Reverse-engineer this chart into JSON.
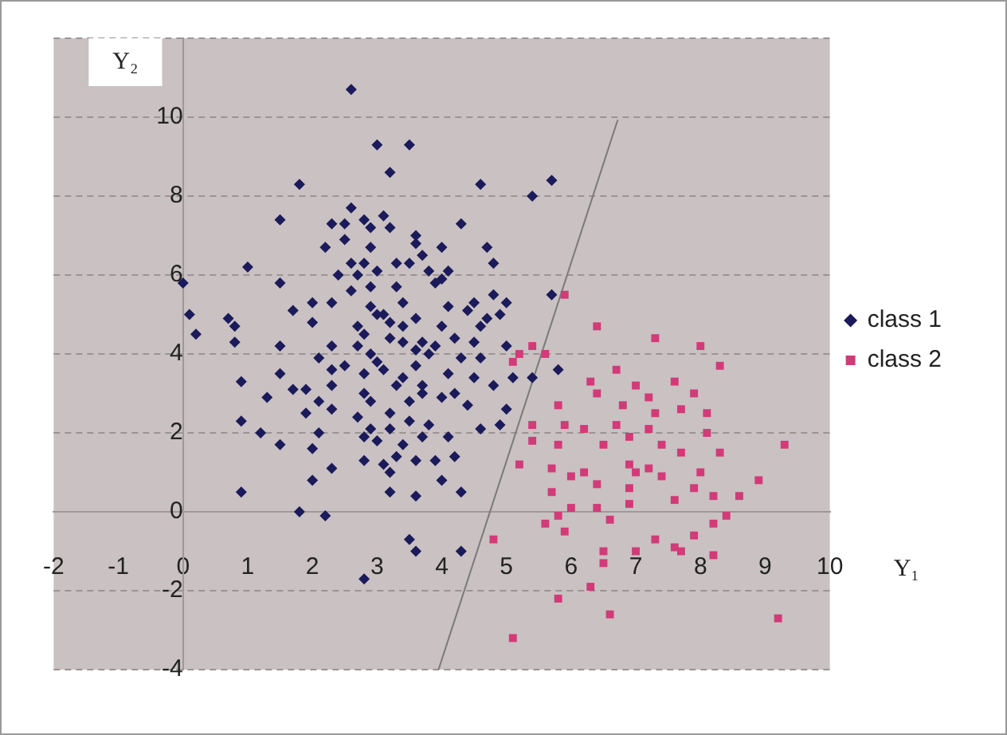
{
  "chart_data": {
    "type": "scatter",
    "xlabel": "Y₁",
    "ylabel": "Y₂",
    "xlim": [
      -2,
      10
    ],
    "ylim": [
      -4,
      12
    ],
    "xticks": [
      -2,
      -1,
      0,
      1,
      2,
      3,
      4,
      5,
      6,
      7,
      8,
      9,
      10
    ],
    "yticks": [
      -4,
      -2,
      0,
      2,
      4,
      6,
      8,
      10,
      {
        "value": 12,
        "label": null
      }
    ],
    "grid": "y",
    "legend": "right",
    "series": [
      {
        "name": "class 1",
        "type": "scatter",
        "marker": "diamond",
        "color": "#1b1a5a",
        "x": [
          2.6,
          3.0,
          3.5,
          3.2,
          1.8,
          1.5,
          1.0,
          0.0,
          1.5,
          0.1,
          0.2,
          0.7,
          0.8,
          0.8,
          1.5,
          1.7,
          2.0,
          2.0,
          2.3,
          2.2,
          2.3,
          2.5,
          2.6,
          2.8,
          3.1,
          2.9,
          3.2,
          2.5,
          2.9,
          2.6,
          2.8,
          3.3,
          3.5,
          2.4,
          2.7,
          3.0,
          2.9,
          3.6,
          3.6,
          3.7,
          4.0,
          3.8,
          4.0,
          4.6,
          5.7,
          5.4,
          4.3,
          4.7,
          4.8,
          4.1,
          4.1,
          4.4,
          4.5,
          4.8,
          5.0,
          4.7,
          5.7,
          4.2,
          4.5,
          5.0,
          3.9,
          3.7,
          5.8,
          5.1,
          5.4,
          3.2,
          3.4,
          2.9,
          2.8,
          3.2,
          3.4,
          5.0,
          4.2,
          4.0,
          4.3,
          3.6,
          3.2,
          3.5,
          3.6,
          4.3,
          2.8,
          4.9,
          4.6,
          4.5,
          4.2,
          3.7,
          3.8,
          3.7,
          3.6,
          3.3,
          3.1,
          3.9,
          2.9,
          3.2,
          3.5,
          3.6,
          3.4,
          3.0,
          3.6,
          3.0,
          3.3,
          3.9,
          0.9,
          1.3,
          1.5,
          1.7,
          1.9,
          2.1,
          1.9,
          0.9,
          1.2,
          1.5,
          2.0,
          2.1,
          2.3,
          2.0,
          0.9,
          1.8,
          2.2,
          2.3,
          2.1,
          2.3,
          2.3,
          2.3,
          2.7,
          2.9,
          2.8,
          3.1,
          2.8,
          3.3,
          3.8,
          3.7,
          2.7,
          3.2,
          3.5,
          2.8,
          3.2,
          2.8,
          3.0,
          3.4,
          2.9,
          2.6,
          3.1,
          2.7,
          3.4,
          3.6,
          4.0,
          4.1,
          4.3,
          4.6,
          4.8,
          4.4,
          4.6,
          4.1,
          4.9,
          4.0,
          2.5
        ],
        "values": [
          10.7,
          9.3,
          9.3,
          8.6,
          8.3,
          7.4,
          6.2,
          5.8,
          5.8,
          5.0,
          4.5,
          4.9,
          4.7,
          4.3,
          4.2,
          5.1,
          5.3,
          4.8,
          5.3,
          6.7,
          7.3,
          7.3,
          7.7,
          7.4,
          7.5,
          7.2,
          7.2,
          6.9,
          6.7,
          6.3,
          6.3,
          6.3,
          6.3,
          6.0,
          6.0,
          6.1,
          5.7,
          7.0,
          6.8,
          6.5,
          6.7,
          6.1,
          5.9,
          8.3,
          8.4,
          8.0,
          7.3,
          6.7,
          6.3,
          6.1,
          5.2,
          5.1,
          5.3,
          5.5,
          5.3,
          4.9,
          5.5,
          4.4,
          4.3,
          4.2,
          4.2,
          4.3,
          3.6,
          3.4,
          3.4,
          4.8,
          5.3,
          5.2,
          4.5,
          4.4,
          4.7,
          2.6,
          1.4,
          0.8,
          0.5,
          0.4,
          0.5,
          -0.7,
          -1.0,
          -1.0,
          -1.7,
          5.0,
          4.7,
          3.4,
          3.0,
          3.0,
          2.2,
          1.9,
          1.3,
          1.4,
          1.2,
          1.3,
          2.1,
          2.5,
          2.8,
          3.7,
          3.4,
          3.8,
          4.9,
          5.0,
          5.7,
          5.8,
          3.3,
          2.9,
          3.5,
          3.1,
          3.1,
          2.8,
          2.5,
          2.3,
          2.0,
          1.7,
          1.6,
          2.0,
          1.1,
          0.8,
          0.5,
          0.0,
          -0.1,
          4.2,
          3.9,
          3.6,
          3.2,
          2.6,
          4.2,
          4.0,
          3.5,
          3.6,
          3.0,
          3.2,
          4.0,
          3.2,
          2.4,
          2.1,
          2.3,
          1.3,
          1.0,
          1.9,
          1.8,
          1.7,
          2.8,
          5.6,
          5.0,
          4.7,
          4.3,
          4.1,
          4.7,
          3.5,
          3.9,
          3.9,
          3.2,
          2.7,
          2.1,
          1.9,
          2.2,
          2.9,
          3.7
        ]
      },
      {
        "name": "class 2",
        "type": "scatter",
        "marker": "square",
        "color": "#d23a78",
        "x": [
          5.9,
          6.4,
          7.3,
          8.0,
          8.3,
          6.7,
          5.2,
          5.4,
          5.6,
          5.1,
          6.3,
          6.4,
          7.0,
          7.2,
          7.6,
          7.9,
          7.7,
          8.1,
          8.1,
          8.3,
          5.8,
          5.4,
          5.9,
          6.2,
          5.4,
          5.8,
          6.7,
          6.9,
          7.2,
          7.3,
          7.7,
          7.4,
          5.2,
          5.7,
          6.0,
          6.2,
          6.4,
          6.9,
          7.0,
          7.2,
          7.4,
          6.9,
          5.7,
          6.4,
          6.0,
          7.6,
          7.9,
          8.2,
          8.6,
          8.9,
          9.3,
          8.4,
          8.2,
          5.6,
          5.9,
          5.8,
          4.8,
          6.5,
          6.5,
          7.0,
          7.3,
          7.6,
          7.9,
          8.2,
          7.7,
          6.3,
          5.8,
          6.6,
          5.1,
          9.2,
          6.8,
          6.5,
          8.0,
          6.9,
          6.6
        ],
        "values": [
          5.5,
          4.7,
          4.4,
          4.2,
          3.7,
          3.6,
          4.0,
          4.2,
          4.0,
          3.8,
          3.3,
          3.0,
          3.2,
          2.9,
          3.3,
          3.0,
          2.6,
          2.5,
          2.0,
          1.5,
          2.7,
          2.2,
          2.2,
          2.1,
          1.8,
          1.7,
          2.2,
          1.9,
          2.1,
          2.5,
          1.5,
          1.7,
          1.2,
          1.1,
          0.9,
          1.0,
          0.7,
          1.2,
          1.0,
          1.1,
          0.9,
          0.6,
          0.5,
          0.1,
          0.1,
          0.3,
          0.6,
          0.4,
          0.4,
          0.8,
          1.7,
          -0.1,
          -0.3,
          -0.3,
          -0.5,
          -0.1,
          -0.7,
          -1.0,
          -1.3,
          -1.0,
          -0.7,
          -0.9,
          -0.6,
          -1.1,
          -1.0,
          -1.9,
          -2.2,
          -2.6,
          -3.2,
          -2.7,
          2.7,
          1.7,
          1.0,
          0.2,
          -0.2
        ]
      },
      {
        "type": "line",
        "marker": "none",
        "color": "#7a7a7a",
        "x": [
          3.95,
          6.72
        ],
        "values": [
          -4,
          9.93
        ]
      }
    ]
  }
}
